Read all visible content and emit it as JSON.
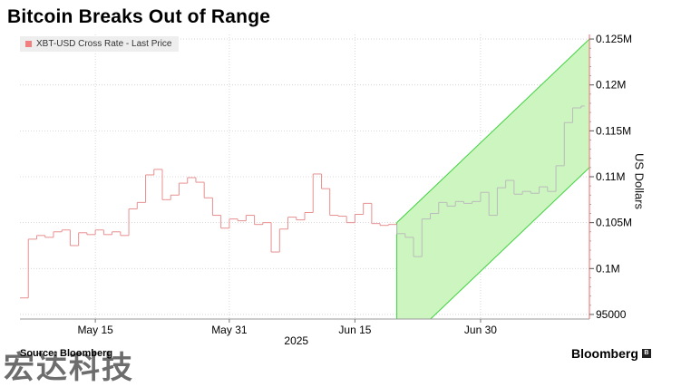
{
  "chart_data": {
    "type": "line",
    "title": "Bitcoin Breaks Out of Range",
    "ylabel": "US Dollars",
    "xlabel": "",
    "ylim": [
      94500,
      125500
    ],
    "y_ticks": [
      95000,
      100000,
      105000,
      110000,
      115000,
      120000,
      125000
    ],
    "y_tick_labels": [
      "95000",
      "0.1M",
      "0.105M",
      "0.11M",
      "0.115M",
      "0.12M",
      "0.125M"
    ],
    "x_ticks": [
      "2025-05-15",
      "2025-05-31",
      "2025-06-15",
      "2025-06-30"
    ],
    "x_tick_labels": [
      "May 15",
      "May 31",
      "Jun 15",
      "Jun 30"
    ],
    "x_year_label": "2025",
    "grid": true,
    "legend": "top-left",
    "series": [
      {
        "name": "XBT-USD Cross Rate - Last Price",
        "color": "#f08080",
        "pre_breakout_color": "#e89090",
        "post_breakout_color": "#bbbbbb",
        "x": [
          "2025-05-06",
          "2025-05-07",
          "2025-05-08",
          "2025-05-09",
          "2025-05-10",
          "2025-05-11",
          "2025-05-12",
          "2025-05-13",
          "2025-05-14",
          "2025-05-15",
          "2025-05-16",
          "2025-05-17",
          "2025-05-18",
          "2025-05-19",
          "2025-05-20",
          "2025-05-21",
          "2025-05-22",
          "2025-05-23",
          "2025-05-24",
          "2025-05-25",
          "2025-05-26",
          "2025-05-27",
          "2025-05-28",
          "2025-05-29",
          "2025-05-30",
          "2025-05-31",
          "2025-06-01",
          "2025-06-02",
          "2025-06-03",
          "2025-06-04",
          "2025-06-05",
          "2025-06-06",
          "2025-06-07",
          "2025-06-08",
          "2025-06-09",
          "2025-06-10",
          "2025-06-11",
          "2025-06-12",
          "2025-06-13",
          "2025-06-14",
          "2025-06-15",
          "2025-06-16",
          "2025-06-17",
          "2025-06-18",
          "2025-06-19",
          "2025-06-20",
          "2025-06-21",
          "2025-06-22",
          "2025-06-23",
          "2025-06-24",
          "2025-06-25",
          "2025-06-26",
          "2025-06-27",
          "2025-06-28",
          "2025-06-29",
          "2025-06-30",
          "2025-07-01",
          "2025-07-02",
          "2025-07-03",
          "2025-07-04",
          "2025-07-05",
          "2025-07-06",
          "2025-07-07",
          "2025-07-08",
          "2025-07-09",
          "2025-07-10",
          "2025-07-11",
          "2025-07-12"
        ],
        "values": [
          96800,
          103200,
          103600,
          103400,
          104000,
          104200,
          102500,
          103900,
          103700,
          104200,
          103700,
          104000,
          103600,
          106500,
          107200,
          110200,
          110800,
          107500,
          108000,
          109300,
          109900,
          109400,
          107700,
          105800,
          104400,
          105400,
          105200,
          105800,
          104800,
          105000,
          101800,
          104300,
          105600,
          105300,
          106100,
          110300,
          108700,
          105800,
          105700,
          105000,
          105900,
          107100,
          104900,
          104700,
          104800,
          103800,
          103400,
          101300,
          105400,
          106000,
          107200,
          106800,
          107300,
          107100,
          107300,
          108300,
          105800,
          108800,
          109600,
          108100,
          108400,
          108200,
          108900,
          108400,
          111200,
          115900,
          117500,
          117700
        ]
      }
    ],
    "breakout_channel": {
      "start_date": "2025-06-20",
      "end_date": "2025-07-13",
      "upper": [
        105000,
        125000
      ],
      "lower": [
        91000,
        111000
      ]
    }
  },
  "footer": {
    "source": "Source: Bloomberg",
    "brand": "Bloomberg",
    "watermark": "宏达科技"
  }
}
